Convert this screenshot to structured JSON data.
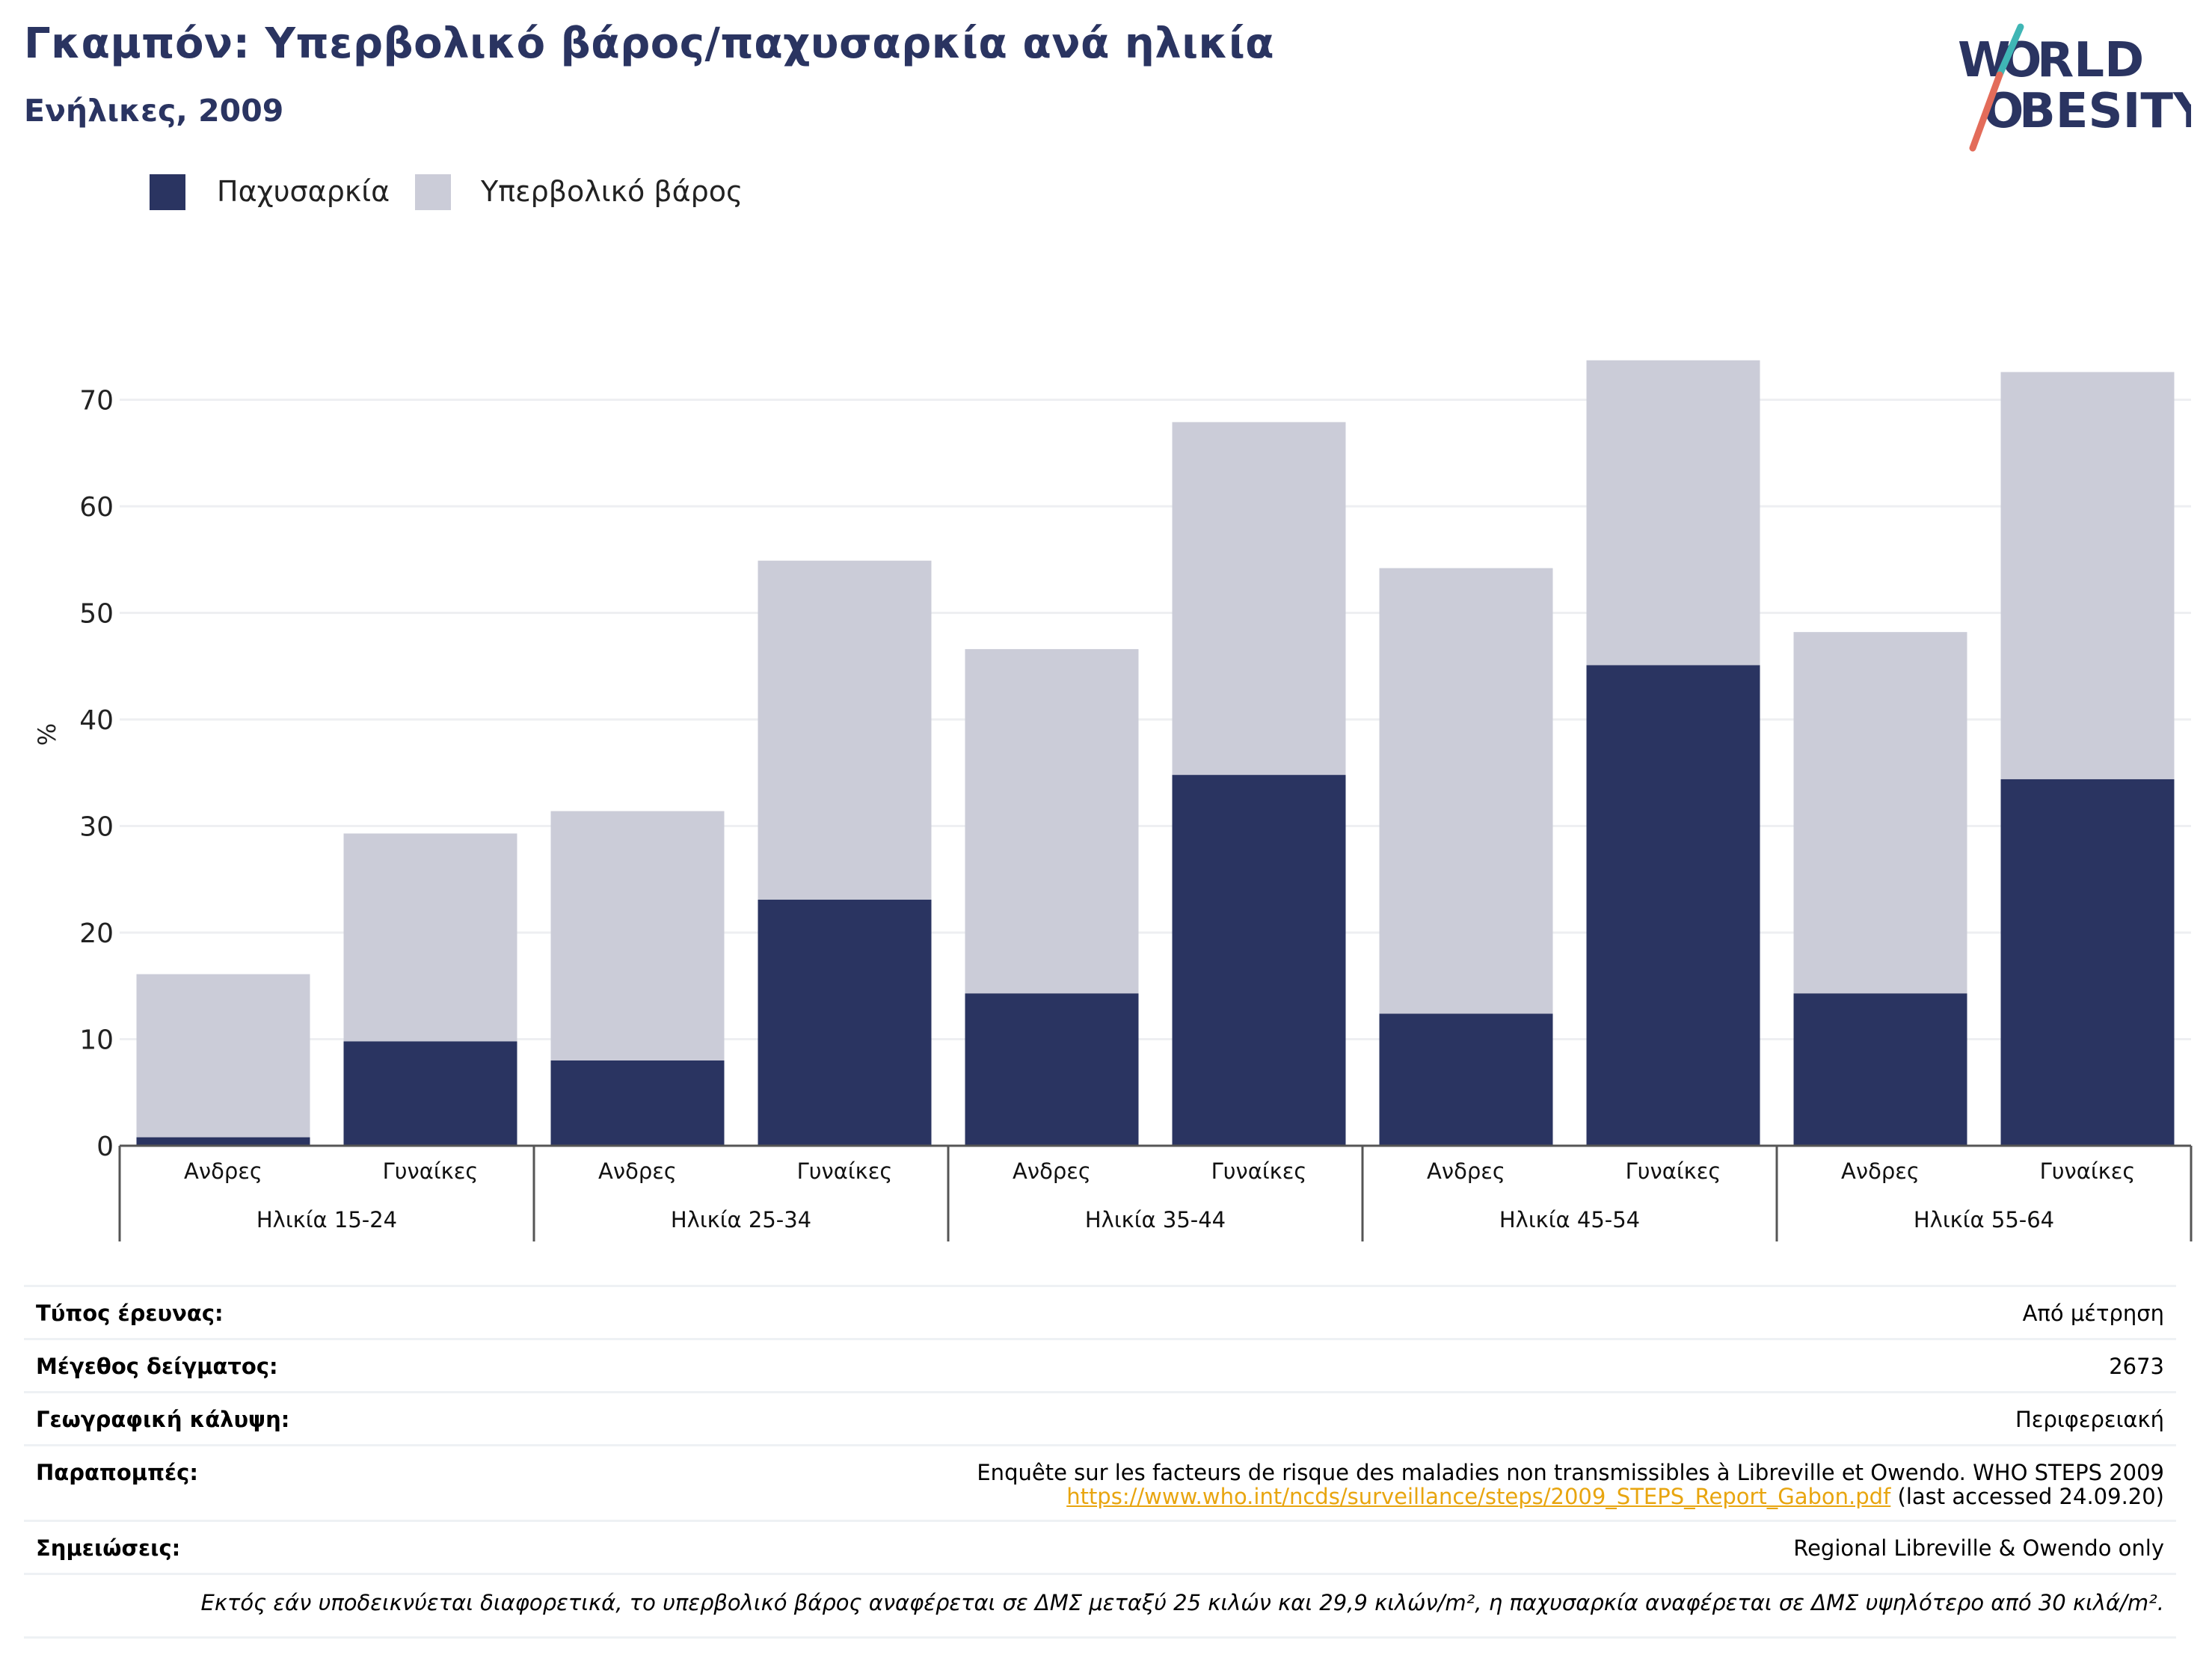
{
  "header": {
    "title": "Γκαμπόν: Υπερβολικό βάρος/παχυσαρκία ανά ηλικία",
    "subtitle": "Ενήλικες, 2009",
    "logo_text": "WORLD OBESITY"
  },
  "colors": {
    "obesity": "#2a3461",
    "overweight": "#cbccd8",
    "title": "#2a3461",
    "link": "#e8a50f",
    "logo_slash_teal": "#3fb6b5",
    "logo_slash_coral": "#e36c5a",
    "grid": "#eeeff2"
  },
  "chart_data": {
    "type": "bar",
    "stacked": true,
    "title": "",
    "xlabel": "",
    "ylabel": "%",
    "ylim": [
      0,
      75
    ],
    "yticks": [
      0,
      10,
      20,
      30,
      40,
      50,
      60,
      70
    ],
    "grid": true,
    "legend_position": "top-left",
    "categories": [
      "Ανδρες",
      "Γυναίκες",
      "Ανδρες",
      "Γυναίκες",
      "Ανδρες",
      "Γυναίκες",
      "Ανδρες",
      "Γυναίκες",
      "Ανδρες",
      "Γυναίκες"
    ],
    "groups": [
      {
        "label": "Ηλικία 15-24",
        "categories": [
          "Ανδρες",
          "Γυναίκες"
        ]
      },
      {
        "label": "Ηλικία 25-34",
        "categories": [
          "Ανδρες",
          "Γυναίκες"
        ]
      },
      {
        "label": "Ηλικία 35-44",
        "categories": [
          "Ανδρες",
          "Γυναίκες"
        ]
      },
      {
        "label": "Ηλικία 45-54",
        "categories": [
          "Ανδρες",
          "Γυναίκες"
        ]
      },
      {
        "label": "Ηλικία 55-64",
        "categories": [
          "Ανδρες",
          "Γυναίκες"
        ]
      }
    ],
    "series": [
      {
        "name": "Παχυσαρκία",
        "values": [
          0.8,
          9.8,
          8.0,
          23.1,
          14.3,
          34.8,
          12.4,
          45.1,
          14.3,
          34.4
        ]
      },
      {
        "name": "Υπερβολικό βάρος",
        "values": [
          15.3,
          19.5,
          23.4,
          31.8,
          32.3,
          33.1,
          41.8,
          28.6,
          33.9,
          38.2
        ]
      }
    ]
  },
  "info": {
    "survey_type_label": "Τύπος έρευνας:",
    "survey_type_value": "Από μέτρηση",
    "sample_size_label": "Μέγεθος δείγματος:",
    "sample_size_value": "2673",
    "coverage_label": "Γεωγραφική κάλυψη:",
    "coverage_value": "Περιφερειακή",
    "references_label": "Παραπομπές:",
    "references_line1": "Enquête sur les facteurs de risque des maladies non transmissibles à Libreville et Owendo. WHO STEPS 2009",
    "references_link": "https://www.who.int/ncds/surveillance/steps/2009_STEPS_Report_Gabon.pdf",
    "references_accessed": " (last accessed 24.09.20)",
    "notes_label": "Σημειώσεις:",
    "notes_value": "Regional Libreville & Owendo only",
    "footnote": "Εκτός εάν υποδεικνύεται διαφορετικά, το υπερβολικό βάρος αναφέρεται σε ΔΜΣ μεταξύ 25 κιλών και 29,9 κιλών/m², η παχυσαρκία αναφέρεται σε ΔΜΣ υψηλότερο από 30 κιλά/m²."
  }
}
